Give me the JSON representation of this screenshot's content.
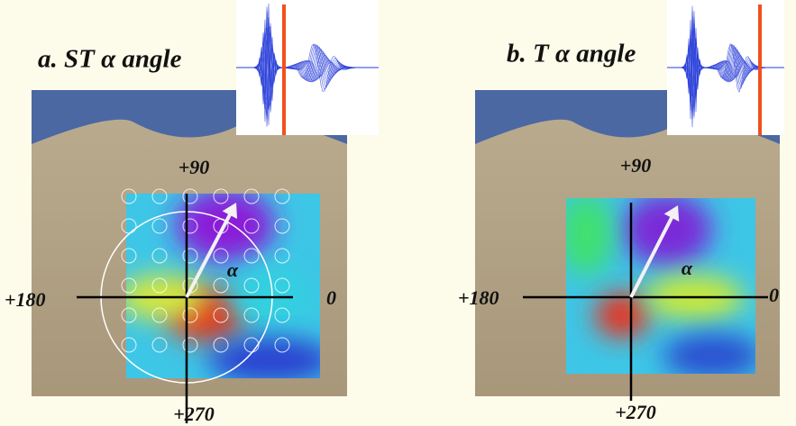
{
  "panels": [
    {
      "title": "a. ST α angle",
      "labels": {
        "top": "+90",
        "left": "+180",
        "right": "0",
        "bottom": "+270",
        "angle": "α"
      }
    },
    {
      "title": "b. T α angle",
      "labels": {
        "top": "+90",
        "left": "+180",
        "right": "0",
        "bottom": "+270",
        "angle": "α"
      }
    }
  ]
}
